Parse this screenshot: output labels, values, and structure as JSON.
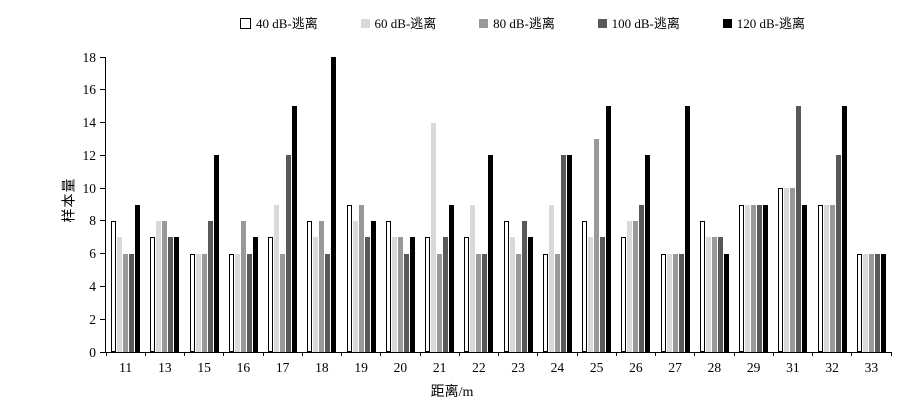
{
  "chart_data": {
    "type": "bar",
    "title": "",
    "xlabel": "距离/m",
    "ylabel": "样本量",
    "ylim": [
      0,
      18
    ],
    "ytick_step": 2,
    "grid": false,
    "legend_position": "top",
    "categories": [
      "11",
      "13",
      "15",
      "16",
      "17",
      "18",
      "19",
      "20",
      "21",
      "22",
      "23",
      "24",
      "25",
      "26",
      "27",
      "28",
      "29",
      "31",
      "32",
      "33"
    ],
    "series": [
      {
        "name": "40 dB-逃离",
        "color": "#ffffff",
        "border": "#000000",
        "values": [
          8,
          7,
          6,
          6,
          7,
          8,
          9,
          8,
          7,
          7,
          8,
          6,
          8,
          7,
          6,
          8,
          9,
          10,
          9,
          6
        ]
      },
      {
        "name": "60 dB-逃离",
        "color": "#d9d9d9",
        "values": [
          7,
          8,
          6,
          6,
          9,
          7,
          8,
          7,
          14,
          9,
          7,
          9,
          7,
          8,
          6,
          7,
          9,
          10,
          9,
          6
        ]
      },
      {
        "name": "80 dB-逃离",
        "color": "#999999",
        "values": [
          6,
          8,
          6,
          8,
          6,
          8,
          9,
          7,
          6,
          6,
          6,
          6,
          13,
          8,
          6,
          7,
          9,
          10,
          9,
          6
        ]
      },
      {
        "name": "100 dB-逃离",
        "color": "#595959",
        "values": [
          6,
          7,
          8,
          6,
          12,
          6,
          7,
          6,
          7,
          6,
          8,
          12,
          7,
          9,
          6,
          7,
          9,
          15,
          12,
          6
        ]
      },
      {
        "name": "120 dB-逃离",
        "color": "#000000",
        "values": [
          9,
          7,
          12,
          7,
          15,
          18,
          8,
          7,
          9,
          12,
          7,
          12,
          15,
          12,
          15,
          6,
          9,
          9,
          15,
          6
        ]
      }
    ],
    "colors": {
      "axis": "#000000",
      "background": "#ffffff"
    }
  }
}
